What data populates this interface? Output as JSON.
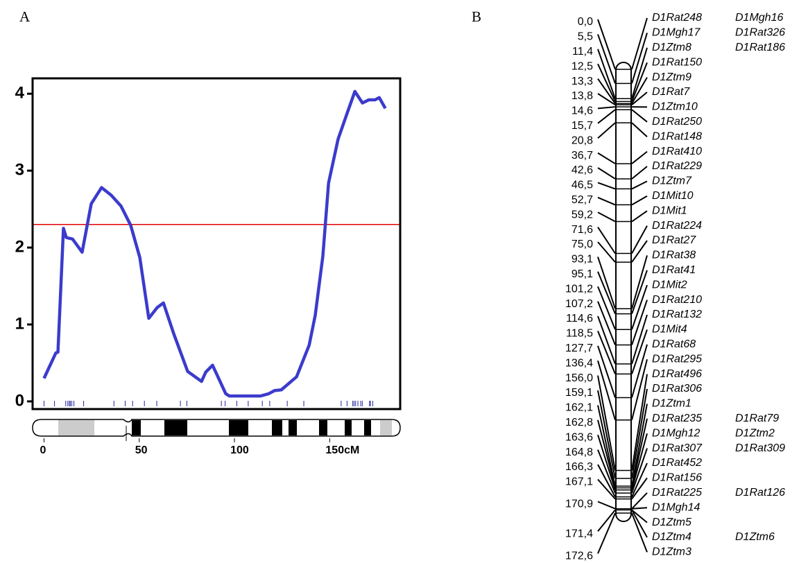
{
  "chart_data": {
    "type": "line",
    "panel_label": "A",
    "x": [
      0,
      6.2,
      7.3,
      10.2,
      11.7,
      15,
      20,
      24.8,
      30.2,
      35.3,
      40.4,
      45.5,
      50.3,
      55,
      59.4,
      62.7,
      68.1,
      75.4,
      82.7,
      84.9,
      88.5,
      95.4,
      97.3,
      113.7,
      118,
      121,
      124.6,
      132.6,
      139.2,
      142.4,
      146.4,
      149.4,
      154.4,
      159.2,
      163.2,
      167.2,
      170.5,
      173.8,
      176,
      179.2
    ],
    "series": [
      {
        "color": "#3b3bcc",
        "values": [
          0.3,
          0.63,
          0.64,
          2.25,
          2.13,
          2.11,
          1.94,
          2.57,
          2.78,
          2.68,
          2.54,
          2.29,
          1.87,
          1.08,
          1.22,
          1.28,
          0.88,
          0.39,
          0.26,
          0.38,
          0.47,
          0.1,
          0.07,
          0.07,
          0.1,
          0.14,
          0.15,
          0.32,
          0.73,
          1.12,
          1.89,
          2.84,
          3.41,
          3.75,
          4.03,
          3.88,
          3.92,
          3.92,
          3.95,
          3.81
        ]
      }
    ],
    "threshold": {
      "value": 2.3,
      "color": "#e00000"
    },
    "xlim": [
      -6,
      187
    ],
    "ylim": [
      -0.1,
      4.2
    ],
    "xticks": [
      0,
      50,
      100,
      {
        "value": 150,
        "label": "150cM"
      }
    ],
    "yticks": [
      0,
      1,
      2,
      3,
      4
    ]
  },
  "genetic_map": {
    "panel_label": "B",
    "loci": [
      {
        "position": {
          "value": 0,
          "label": "0,0"
        },
        "rows": [
          [
            "D1Rat248",
            "D1Mgh16"
          ]
        ]
      },
      {
        "position": {
          "value": 5.5,
          "label": "5,5"
        },
        "rows": [
          [
            "D1Mgh17",
            "D1Rat326"
          ]
        ]
      },
      {
        "position": {
          "value": 11.4,
          "label": "11,4"
        },
        "rows": [
          [
            "D1Ztm8",
            "D1Rat186"
          ]
        ]
      },
      {
        "position": {
          "value": 12.5,
          "label": "12,5"
        },
        "rows": [
          [
            "D1Rat150"
          ]
        ]
      },
      {
        "position": {
          "value": 13.3,
          "label": "13,3"
        },
        "rows": [
          [
            "D1Ztm9"
          ]
        ]
      },
      {
        "position": {
          "value": 13.8,
          "label": "13,8"
        },
        "rows": [
          [
            "D1Rat7"
          ]
        ]
      },
      {
        "position": {
          "value": 14.6,
          "label": "14,6"
        },
        "rows": [
          [
            "D1Ztm10"
          ]
        ]
      },
      {
        "position": {
          "value": 15.7,
          "label": "15,7"
        },
        "rows": [
          [
            "D1Rat250"
          ]
        ]
      },
      {
        "position": {
          "value": 20.8,
          "label": "20,8"
        },
        "rows": [
          [
            "D1Rat148"
          ]
        ]
      },
      {
        "position": {
          "value": 36.7,
          "label": "36,7"
        },
        "rows": [
          [
            "D1Rat410"
          ]
        ]
      },
      {
        "position": {
          "value": 42.6,
          "label": "42,6"
        },
        "rows": [
          [
            "D1Rat229"
          ]
        ]
      },
      {
        "position": {
          "value": 46.5,
          "label": "46,5"
        },
        "rows": [
          [
            "D1Ztm7"
          ]
        ]
      },
      {
        "position": {
          "value": 52.7,
          "label": "52,7"
        },
        "rows": [
          [
            "D1Mit10"
          ]
        ]
      },
      {
        "position": {
          "value": 59.2,
          "label": "59,2"
        },
        "rows": [
          [
            "D1Mit1"
          ]
        ]
      },
      {
        "position": {
          "value": 71.6,
          "label": "71,6"
        },
        "rows": [
          [
            "D1Rat224"
          ]
        ]
      },
      {
        "position": {
          "value": 75.0,
          "label": "75,0"
        },
        "rows": [
          [
            "D1Rat27"
          ]
        ]
      },
      {
        "position": {
          "value": 93.1,
          "label": "93,1"
        },
        "rows": [
          [
            "D1Rat38"
          ]
        ]
      },
      {
        "position": {
          "value": 95.1,
          "label": "95,1"
        },
        "rows": [
          [
            "D1Rat41"
          ]
        ]
      },
      {
        "position": {
          "value": 101.2,
          "label": "101,2"
        },
        "rows": [
          [
            "D1Mit2"
          ]
        ]
      },
      {
        "position": {
          "value": 107.2,
          "label": "107,2"
        },
        "rows": [
          [
            "D1Rat210"
          ]
        ]
      },
      {
        "position": {
          "value": 114.6,
          "label": "114,6"
        },
        "rows": [
          [
            "D1Rat132"
          ]
        ]
      },
      {
        "position": {
          "value": 118.5,
          "label": "118,5"
        },
        "rows": [
          [
            "D1Mit4"
          ]
        ]
      },
      {
        "position": {
          "value": 127.7,
          "label": "127,7"
        },
        "rows": [
          [
            "D1Rat68"
          ]
        ]
      },
      {
        "position": {
          "value": 136.4,
          "label": "136,4"
        },
        "rows": [
          [
            "D1Rat295"
          ]
        ]
      },
      {
        "position": {
          "value": 156.0,
          "label": "156,0"
        },
        "rows": [
          [
            "D1Rat496"
          ]
        ]
      },
      {
        "position": {
          "value": 159.1,
          "label": "159,1"
        },
        "rows": [
          [
            "D1Rat306"
          ]
        ]
      },
      {
        "position": {
          "value": 162.1,
          "label": "162,1"
        },
        "rows": [
          [
            "D1Ztm1"
          ]
        ]
      },
      {
        "position": {
          "value": 162.8,
          "label": "162,8"
        },
        "rows": [
          [
            "D1Rat235",
            "D1Rat79"
          ]
        ]
      },
      {
        "position": {
          "value": 163.6,
          "label": "163,6"
        },
        "rows": [
          [
            "D1Mgh12",
            "D1Ztm2"
          ]
        ]
      },
      {
        "position": {
          "value": 164.8,
          "label": "164,8"
        },
        "rows": [
          [
            "D1Rat307",
            "D1Rat309"
          ]
        ]
      },
      {
        "position": {
          "value": 166.3,
          "label": "166,3"
        },
        "rows": [
          [
            "D1Rat452"
          ]
        ]
      },
      {
        "position": {
          "value": 167.1,
          "label": "167,1"
        },
        "rows": [
          [
            "D1Rat156"
          ]
        ]
      },
      {
        "position": {
          "value": 170.9,
          "label": "170,9"
        },
        "rows": [
          [
            "D1Rat225",
            "D1Rat126"
          ],
          [
            "D1Mgh14"
          ]
        ]
      },
      {
        "position": {
          "value": 171.4,
          "label": "171,4"
        },
        "rows": [
          [
            "D1Ztm5"
          ],
          [
            "D1Ztm4",
            "D1Ztm6"
          ]
        ]
      },
      {
        "position": {
          "value": 172.6,
          "label": "172,6"
        },
        "rows": [
          [
            "D1Ztm3"
          ]
        ]
      }
    ]
  }
}
